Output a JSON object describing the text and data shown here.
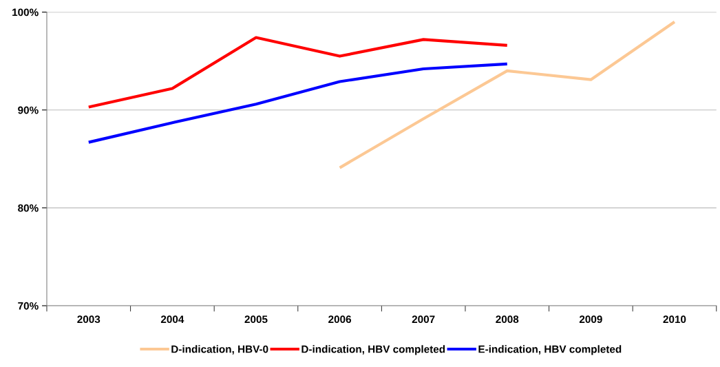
{
  "chart_data": {
    "type": "line",
    "categories": [
      "2003",
      "2004",
      "2005",
      "2006",
      "2007",
      "2008",
      "2009",
      "2010"
    ],
    "series": [
      {
        "name": "D-indication, HBV-0",
        "color": "#fcc894",
        "values": [
          null,
          null,
          null,
          84.1,
          89.1,
          94.0,
          93.1,
          99.0
        ]
      },
      {
        "name": "D-indication, HBV completed",
        "color": "#ff0000",
        "values": [
          90.3,
          92.2,
          97.4,
          95.5,
          97.2,
          96.6,
          null,
          null
        ]
      },
      {
        "name": "E-indication, HBV completed",
        "color": "#0000ff",
        "values": [
          86.7,
          88.7,
          90.6,
          92.9,
          94.2,
          94.7,
          null,
          null
        ]
      }
    ],
    "ylim": [
      70,
      100
    ],
    "yticks": [
      {
        "value": 70,
        "label": "70%"
      },
      {
        "value": 80,
        "label": "80%"
      },
      {
        "value": 90,
        "label": "90%"
      },
      {
        "value": 100,
        "label": "100%"
      }
    ],
    "grid": "y",
    "legend": "bottom",
    "marker": "none",
    "line_style": "solid"
  }
}
